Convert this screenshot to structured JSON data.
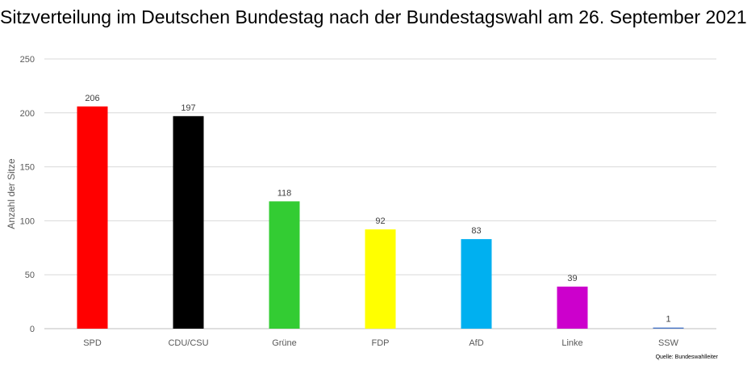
{
  "chart_data": {
    "type": "bar",
    "title": "Sitzverteilung im Deutschen Bundestag nach der Bundestagswahl am 26. September 2021",
    "xlabel": "",
    "ylabel": "Anzahl der Sitze",
    "ylim": [
      0,
      250
    ],
    "yticks": [
      0,
      50,
      100,
      150,
      200,
      250
    ],
    "grid": true,
    "legend": "none",
    "categories": [
      "SPD",
      "CDU/CSU",
      "Grüne",
      "FDP",
      "AfD",
      "Linke",
      "SSW"
    ],
    "values": [
      206,
      197,
      118,
      92,
      83,
      39,
      1
    ],
    "colors": [
      "#ff0000",
      "#000000",
      "#33cc33",
      "#ffff00",
      "#00b0f0",
      "#cc00cc",
      "#4472c4"
    ],
    "source": "Quelle: Bundeswahlleiter"
  }
}
